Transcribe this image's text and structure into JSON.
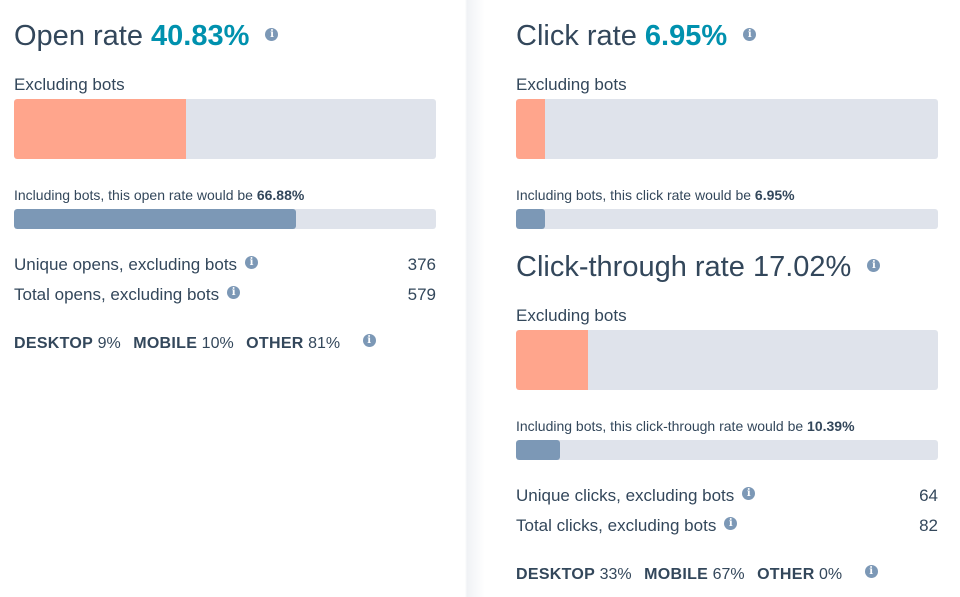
{
  "open": {
    "title": "Open rate",
    "value": "40.83%",
    "excl_label": "Excluding bots",
    "excl_fraction": 0.4083,
    "incl_prefix": "Including bots, this open rate would be ",
    "incl_value": "66.88%",
    "incl_fraction": 0.6688,
    "unique_label": "Unique opens, excluding bots",
    "unique_value": "376",
    "total_label": "Total opens, excluding bots",
    "total_value": "579",
    "devices": {
      "desktop_label": "DESKTOP",
      "desktop_value": "9%",
      "mobile_label": "MOBILE",
      "mobile_value": "10%",
      "other_label": "OTHER",
      "other_value": "81%"
    }
  },
  "click": {
    "title": "Click rate",
    "value": "6.95%",
    "excl_label": "Excluding bots",
    "excl_fraction": 0.0695,
    "incl_prefix": "Including bots, this click rate would be ",
    "incl_value": "6.95%",
    "incl_fraction": 0.0695
  },
  "ctr": {
    "title": "Click-through rate",
    "value": "17.02%",
    "excl_label": "Excluding bots",
    "excl_fraction": 0.1702,
    "incl_prefix": "Including bots, this click-through rate would be ",
    "incl_value": "10.39%",
    "incl_fraction": 0.1039,
    "unique_label": "Unique clicks, excluding bots",
    "unique_value": "64",
    "total_label": "Total clicks, excluding bots",
    "total_value": "82",
    "devices": {
      "desktop_label": "DESKTOP",
      "desktop_value": "33%",
      "mobile_label": "MOBILE",
      "mobile_value": "67%",
      "other_label": "OTHER",
      "other_value": "0%"
    }
  },
  "icons": {
    "info": "info-icon",
    "info_glyph": "i"
  },
  "colors": {
    "accent": "#0091ae",
    "text": "#33475b",
    "excluding_bar": "#ffa58c",
    "including_bar": "#7c98b6",
    "track": "#dfe3eb"
  }
}
